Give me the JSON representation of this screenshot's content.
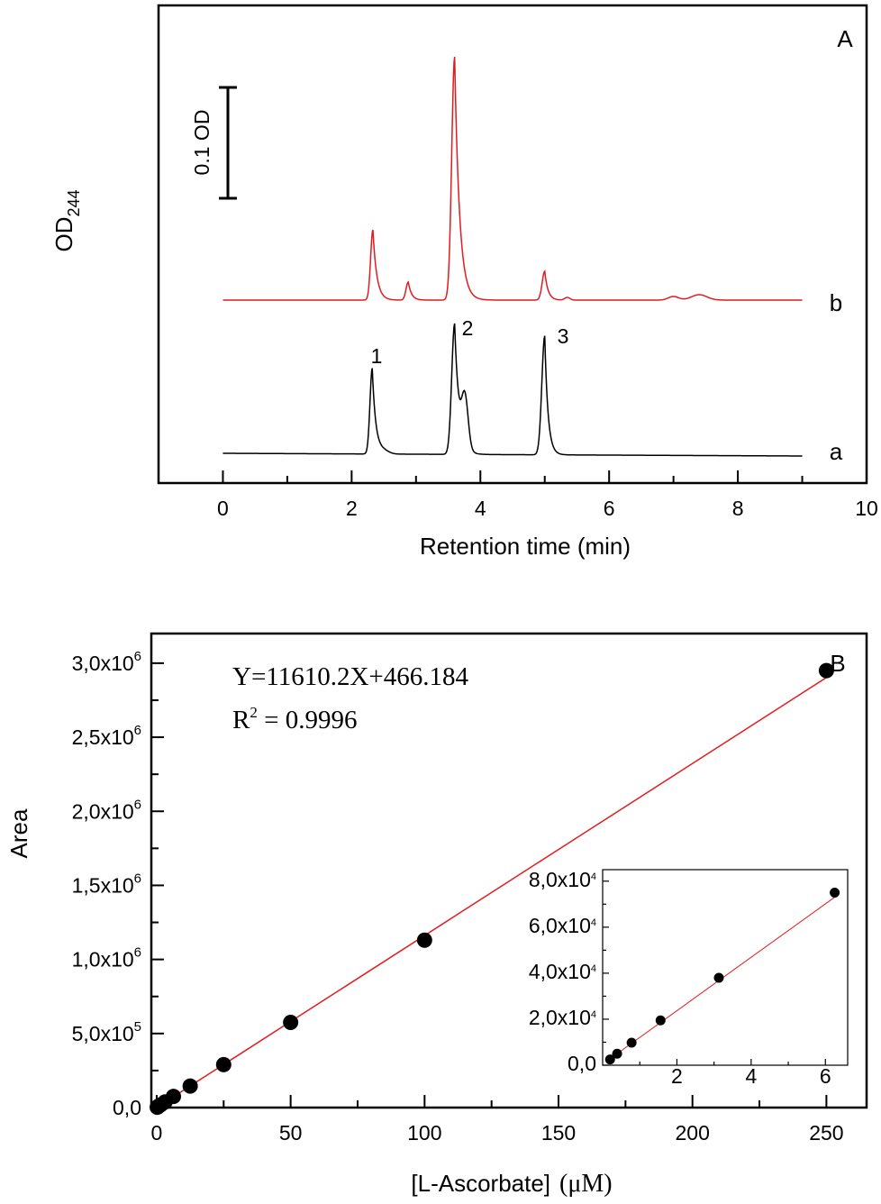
{
  "chart_data": [
    {
      "panel_label": "A",
      "type": "line",
      "xlabel": "Retention time (min)",
      "ylabel": "OD",
      "ylabel_sub": "244",
      "xlim": [
        -1,
        10
      ],
      "xticks": [
        "0",
        "2",
        "4",
        "6",
        "8",
        "10"
      ],
      "scale_bar_label": "0.1 OD",
      "series": [
        {
          "name": "a",
          "color": "#000000",
          "peak_labels": [
            "1",
            "2",
            "3"
          ],
          "peaks": [
            {
              "label": "1",
              "x": 2.32
            },
            {
              "label": "2",
              "x": 3.6
            },
            {
              "label": "3",
              "x": 5.0
            }
          ]
        },
        {
          "name": "b",
          "color": "#e41a1c",
          "peaks": [
            {
              "x": 2.33
            },
            {
              "x": 2.88
            },
            {
              "x": 3.6
            },
            {
              "x": 5.0
            },
            {
              "x": 7.0
            },
            {
              "x": 7.4
            }
          ]
        }
      ]
    },
    {
      "panel_label": "B",
      "type": "scatter",
      "xlabel_main": "[L-Ascorbate]",
      "xlabel_unit": "(μM)",
      "ylabel": "Area",
      "xlim": [
        -2,
        265
      ],
      "ylim": [
        0,
        3200000
      ],
      "xticks": [
        "0",
        "50",
        "100",
        "150",
        "200",
        "250"
      ],
      "yticks": [
        {
          "mantissa": "0,0",
          "exp": ""
        },
        {
          "mantissa": "5,0x10",
          "exp": "5"
        },
        {
          "mantissa": "1,0x10",
          "exp": "6"
        },
        {
          "mantissa": "1,5x10",
          "exp": "6"
        },
        {
          "mantissa": "2,0x10",
          "exp": "6"
        },
        {
          "mantissa": "2,5x10",
          "exp": "6"
        },
        {
          "mantissa": "3,0x10",
          "exp": "6"
        }
      ],
      "equation": "Y=11610.2X+466.184",
      "r2_prefix": "R",
      "r2_sup": "2",
      "r2_value": " = 0.9996",
      "fit": {
        "slope": 11610.2,
        "intercept": 466.184,
        "color": "#e41a1c"
      },
      "points": [
        {
          "x": 0.2,
          "y": 2500
        },
        {
          "x": 0.39,
          "y": 5000
        },
        {
          "x": 0.78,
          "y": 9800
        },
        {
          "x": 1.56,
          "y": 19500
        },
        {
          "x": 3.13,
          "y": 38000
        },
        {
          "x": 6.25,
          "y": 75000
        },
        {
          "x": 12.5,
          "y": 145000
        },
        {
          "x": 25,
          "y": 290000
        },
        {
          "x": 50,
          "y": 575000
        },
        {
          "x": 100,
          "y": 1130000
        },
        {
          "x": 250,
          "y": 2950000
        }
      ],
      "inset": {
        "xlim": [
          0,
          6.6
        ],
        "ylim": [
          0,
          85000
        ],
        "xticks": [
          "2",
          "4",
          "6"
        ],
        "yticks": [
          {
            "mantissa": "0,0",
            "exp": ""
          },
          {
            "mantissa": "2,0x10",
            "exp": "4"
          },
          {
            "mantissa": "4,0x10",
            "exp": "4"
          },
          {
            "mantissa": "6,0x10",
            "exp": "4"
          },
          {
            "mantissa": "8,0x10",
            "exp": "4"
          }
        ],
        "points": [
          {
            "x": 0.2,
            "y": 2500
          },
          {
            "x": 0.39,
            "y": 5000
          },
          {
            "x": 0.78,
            "y": 9800
          },
          {
            "x": 1.56,
            "y": 19500
          },
          {
            "x": 3.13,
            "y": 38000
          },
          {
            "x": 6.25,
            "y": 75000
          }
        ]
      }
    }
  ]
}
